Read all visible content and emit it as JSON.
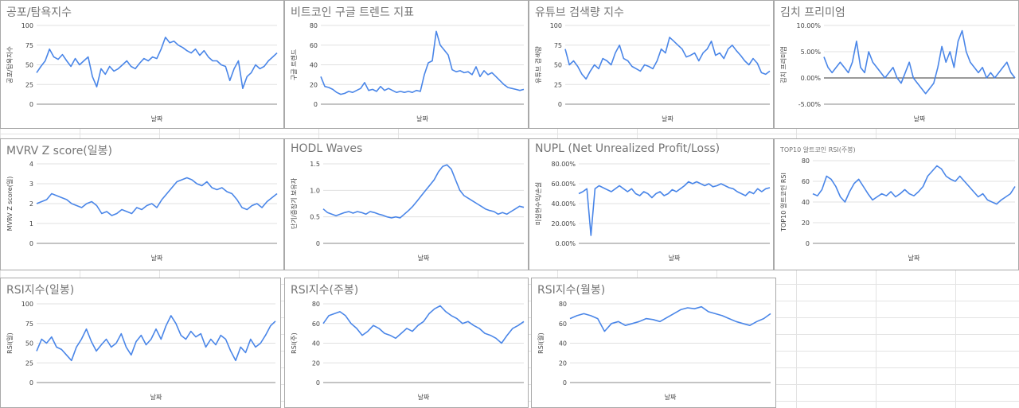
{
  "chart_data": [
    {
      "id": "fear-greed",
      "type": "line",
      "title": "공포/탐욕지수",
      "xlabel": "날짜",
      "ylabel": "공포/탐욕지수",
      "ylim": [
        0,
        100
      ],
      "yticks": [
        "0",
        "25",
        "50",
        "75",
        "100"
      ],
      "grid": true,
      "series": [
        {
          "values": [
            40,
            48,
            55,
            70,
            60,
            57,
            63,
            55,
            48,
            58,
            50,
            55,
            60,
            35,
            22,
            45,
            38,
            48,
            42,
            45,
            50,
            55,
            48,
            45,
            52,
            58,
            55,
            60,
            58,
            70,
            85,
            78,
            80,
            75,
            72,
            68,
            65,
            70,
            62,
            68,
            60,
            55,
            55,
            50,
            48,
            30,
            45,
            55,
            20,
            35,
            40,
            50,
            45,
            48,
            55,
            60,
            65
          ]
        }
      ]
    },
    {
      "id": "btc-trend",
      "type": "line",
      "title": "비트코인 구글 트렌드 지표",
      "xlabel": "날짜",
      "ylabel": "구글 트렌드",
      "ylim": [
        0,
        80
      ],
      "yticks": [
        "0",
        "20",
        "40",
        "60",
        "80"
      ],
      "grid": true,
      "series": [
        {
          "values": [
            28,
            18,
            17,
            15,
            12,
            10,
            11,
            13,
            12,
            14,
            16,
            22,
            14,
            15,
            13,
            18,
            14,
            16,
            14,
            12,
            13,
            12,
            13,
            12,
            14,
            13,
            30,
            42,
            44,
            74,
            60,
            55,
            50,
            35,
            33,
            34,
            32,
            33,
            30,
            38,
            28,
            34,
            30,
            32,
            28,
            24,
            20,
            17,
            16,
            15,
            14,
            15
          ]
        }
      ]
    },
    {
      "id": "youtube-search",
      "type": "line",
      "title": "유튜브 검색량 지수",
      "xlabel": "날짜",
      "ylabel": "유튜브 검색량",
      "ylim": [
        0,
        100
      ],
      "yticks": [
        "0",
        "25",
        "50",
        "75",
        "100"
      ],
      "grid": true,
      "series": [
        {
          "values": [
            70,
            50,
            55,
            48,
            38,
            32,
            42,
            50,
            45,
            58,
            55,
            50,
            65,
            75,
            58,
            55,
            48,
            45,
            42,
            50,
            48,
            45,
            55,
            70,
            65,
            85,
            80,
            75,
            70,
            60,
            62,
            65,
            55,
            65,
            70,
            80,
            62,
            65,
            58,
            70,
            75,
            68,
            62,
            55,
            50,
            58,
            52,
            40,
            38,
            42
          ]
        }
      ]
    },
    {
      "id": "kimchi-premium",
      "type": "line",
      "title": "김치 프리미엄",
      "xlabel": "날짜",
      "ylabel": "김치 프리미엄",
      "ylim": [
        -5,
        10
      ],
      "yticks": [
        "-5.00%",
        "0.00%",
        "5.00%",
        "10.00%"
      ],
      "grid": true,
      "series": [
        {
          "values": [
            4,
            2,
            1,
            2,
            3,
            2,
            1,
            3,
            7,
            2,
            1,
            5,
            3,
            2,
            1,
            0,
            1,
            2,
            0,
            -1,
            1,
            3,
            0,
            -1,
            -2,
            -3,
            -2,
            -1,
            2,
            6,
            3,
            5,
            2,
            7,
            9,
            5,
            3,
            2,
            1,
            2,
            0,
            1,
            0,
            1,
            2,
            3,
            1,
            0
          ]
        }
      ]
    },
    {
      "id": "mvrv",
      "type": "line",
      "title": "MVRV Z score(일봉)",
      "xlabel": "날짜",
      "ylabel": "MVRV Z score(일)",
      "ylim": [
        0,
        4
      ],
      "yticks": [
        "0",
        "1",
        "2",
        "3",
        "4"
      ],
      "grid": true,
      "series": [
        {
          "values": [
            2.0,
            2.1,
            2.2,
            2.5,
            2.4,
            2.3,
            2.2,
            2.0,
            1.9,
            1.8,
            2.0,
            2.1,
            1.9,
            1.5,
            1.6,
            1.4,
            1.5,
            1.7,
            1.6,
            1.5,
            1.8,
            1.7,
            1.9,
            2.0,
            1.8,
            2.2,
            2.5,
            2.8,
            3.1,
            3.2,
            3.3,
            3.2,
            3.0,
            2.9,
            3.1,
            2.8,
            2.7,
            2.8,
            2.6,
            2.5,
            2.2,
            1.8,
            1.7,
            1.9,
            2.0,
            1.8,
            2.1,
            2.3,
            2.5
          ]
        }
      ]
    },
    {
      "id": "hodl",
      "type": "line",
      "title": "HODL Waves",
      "xlabel": "날짜",
      "ylabel": "단기/중장기 보유자",
      "ylim": [
        0,
        1.5
      ],
      "yticks": [
        "0",
        "0.5",
        "1.0",
        "1.5"
      ],
      "grid": true,
      "series": [
        {
          "values": [
            0.65,
            0.58,
            0.55,
            0.52,
            0.55,
            0.58,
            0.6,
            0.57,
            0.6,
            0.58,
            0.55,
            0.6,
            0.58,
            0.55,
            0.53,
            0.5,
            0.48,
            0.5,
            0.48,
            0.55,
            0.62,
            0.7,
            0.8,
            0.9,
            1.0,
            1.1,
            1.2,
            1.35,
            1.45,
            1.48,
            1.4,
            1.2,
            1.0,
            0.9,
            0.85,
            0.8,
            0.75,
            0.7,
            0.65,
            0.62,
            0.6,
            0.55,
            0.58,
            0.55,
            0.6,
            0.65,
            0.7,
            0.68
          ]
        }
      ]
    },
    {
      "id": "nupl",
      "type": "line",
      "title": "NUPL (Net Unrealized Profit/Loss)",
      "xlabel": "날짜",
      "ylabel": "미실현수익/손실",
      "ylim": [
        0,
        80
      ],
      "yticks": [
        "0.00%",
        "20.00%",
        "40.00%",
        "60.00%",
        "80.00%"
      ],
      "grid": true,
      "series": [
        {
          "values": [
            50,
            52,
            55,
            8,
            55,
            58,
            56,
            54,
            52,
            55,
            58,
            55,
            52,
            55,
            50,
            48,
            52,
            50,
            46,
            50,
            52,
            48,
            50,
            54,
            52,
            55,
            58,
            62,
            60,
            62,
            60,
            58,
            60,
            57,
            58,
            60,
            58,
            56,
            55,
            52,
            50,
            48,
            52,
            50,
            55,
            52,
            55,
            56
          ]
        }
      ]
    },
    {
      "id": "top10-alt-rsi",
      "type": "line",
      "title": "TOP10 알트코인 RSI(주봉)",
      "xlabel": "날짜",
      "ylabel": "TOP10 알트코인 RSI",
      "ylim": [
        0,
        80
      ],
      "yticks": [
        "0",
        "20",
        "40",
        "60",
        "80"
      ],
      "grid": true,
      "series": [
        {
          "values": [
            48,
            46,
            52,
            65,
            62,
            55,
            45,
            40,
            50,
            58,
            62,
            55,
            48,
            42,
            45,
            48,
            46,
            50,
            45,
            48,
            52,
            48,
            46,
            50,
            55,
            65,
            70,
            75,
            72,
            65,
            62,
            60,
            65,
            60,
            55,
            50,
            45,
            48,
            42,
            40,
            38,
            42,
            45,
            48,
            55
          ]
        }
      ]
    },
    {
      "id": "rsi-daily",
      "type": "line",
      "title": "RSI지수(일봉)",
      "xlabel": "날짜",
      "ylabel": "RSI(일)",
      "ylim": [
        0,
        100
      ],
      "yticks": [
        "0",
        "25",
        "50",
        "75",
        "100"
      ],
      "grid": true,
      "series": [
        {
          "values": [
            40,
            55,
            50,
            58,
            45,
            42,
            35,
            28,
            45,
            55,
            68,
            52,
            40,
            48,
            55,
            45,
            50,
            62,
            45,
            35,
            52,
            60,
            48,
            55,
            68,
            55,
            72,
            85,
            75,
            60,
            55,
            65,
            58,
            62,
            45,
            55,
            48,
            60,
            55,
            40,
            28,
            45,
            38,
            55,
            45,
            50,
            60,
            72,
            78
          ]
        }
      ]
    },
    {
      "id": "rsi-weekly",
      "type": "line",
      "title": "RSI지수(주봉)",
      "xlabel": "날짜",
      "ylabel": "RSI(주)",
      "ylim": [
        0,
        80
      ],
      "yticks": [
        "0",
        "20",
        "40",
        "60",
        "80"
      ],
      "grid": true,
      "series": [
        {
          "values": [
            60,
            68,
            70,
            72,
            68,
            60,
            55,
            48,
            52,
            58,
            55,
            50,
            48,
            45,
            50,
            55,
            52,
            58,
            62,
            70,
            75,
            78,
            72,
            68,
            65,
            60,
            62,
            58,
            55,
            50,
            48,
            45,
            40,
            48,
            55,
            58,
            62
          ]
        }
      ]
    },
    {
      "id": "rsi-monthly",
      "type": "line",
      "title": "RSI지수(월봉)",
      "xlabel": "날짜",
      "ylabel": "RSI(월)",
      "ylim": [
        0,
        80
      ],
      "yticks": [
        "0",
        "20",
        "40",
        "60",
        "80"
      ],
      "grid": true,
      "series": [
        {
          "values": [
            65,
            68,
            70,
            68,
            65,
            52,
            60,
            62,
            58,
            60,
            62,
            65,
            64,
            62,
            66,
            70,
            74,
            76,
            75,
            77,
            72,
            70,
            68,
            65,
            62,
            60,
            58,
            62,
            65,
            70
          ]
        }
      ]
    }
  ]
}
